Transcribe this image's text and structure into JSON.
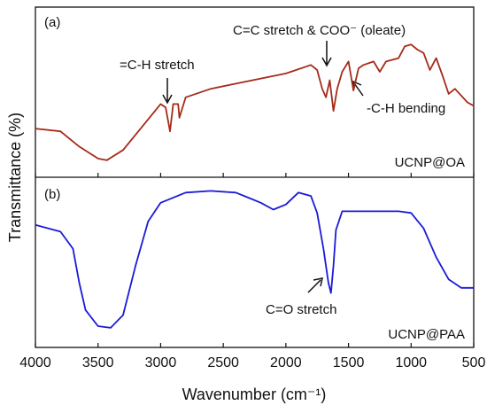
{
  "chart_data": [
    {
      "type": "line",
      "panel_label": "(a)",
      "ylabel": "Transmittance (%)",
      "xlim": [
        4000,
        500
      ],
      "ylim": [
        0,
        100
      ],
      "series": [
        {
          "name": "UCNP@OA",
          "color": "#a52a1a",
          "x": [
            4000,
            3800,
            3650,
            3500,
            3430,
            3300,
            3100,
            3000,
            2960,
            2925,
            2900,
            2860,
            2850,
            2800,
            2600,
            2400,
            2200,
            2000,
            1800,
            1750,
            1710,
            1680,
            1650,
            1620,
            1590,
            1550,
            1500,
            1460,
            1420,
            1380,
            1300,
            1250,
            1200,
            1100,
            1050,
            1000,
            950,
            900,
            850,
            800,
            750,
            700,
            650,
            550,
            500
          ],
          "values": [
            28.6,
            27,
            18,
            11,
            10,
            16,
            34,
            43,
            41,
            27,
            43,
            43,
            35,
            47,
            52,
            55,
            58,
            61,
            66,
            63,
            52,
            47,
            57,
            39,
            52,
            62,
            68,
            51,
            64,
            66,
            68,
            62,
            68,
            70,
            77,
            78,
            75,
            73,
            63,
            70,
            60,
            49,
            52,
            44,
            42
          ]
        }
      ],
      "annotations": [
        "=C-H stretch",
        "C=C stretch & COO⁻ (oleate)",
        "-C-H bending"
      ]
    },
    {
      "type": "line",
      "panel_label": "(b)",
      "xlabel": "Wavenumber (cm⁻¹)",
      "xlim": [
        4000,
        500
      ],
      "ylim": [
        0,
        100
      ],
      "xticks": [
        4000,
        3500,
        3000,
        2500,
        2000,
        1500,
        1000,
        500
      ],
      "series": [
        {
          "name": "UCNP@PAA",
          "color": "#1a1ad8",
          "x": [
            4000,
            3800,
            3700,
            3650,
            3600,
            3500,
            3400,
            3300,
            3200,
            3100,
            3000,
            2800,
            2600,
            2400,
            2300,
            2200,
            2100,
            2000,
            1900,
            1800,
            1750,
            1700,
            1660,
            1640,
            1620,
            1600,
            1550,
            1450,
            1300,
            1100,
            1000,
            900,
            800,
            700,
            600,
            500
          ],
          "values": [
            72,
            68,
            58,
            38,
            22,
            12.5,
            11.5,
            19,
            48,
            74,
            85,
            91,
            92,
            91,
            88,
            85,
            81,
            84,
            91,
            89,
            79,
            58,
            38,
            32,
            48,
            69,
            80,
            80,
            80,
            80,
            79,
            70,
            53,
            40,
            35,
            35
          ]
        }
      ],
      "annotations": [
        "C=O stretch"
      ]
    }
  ]
}
